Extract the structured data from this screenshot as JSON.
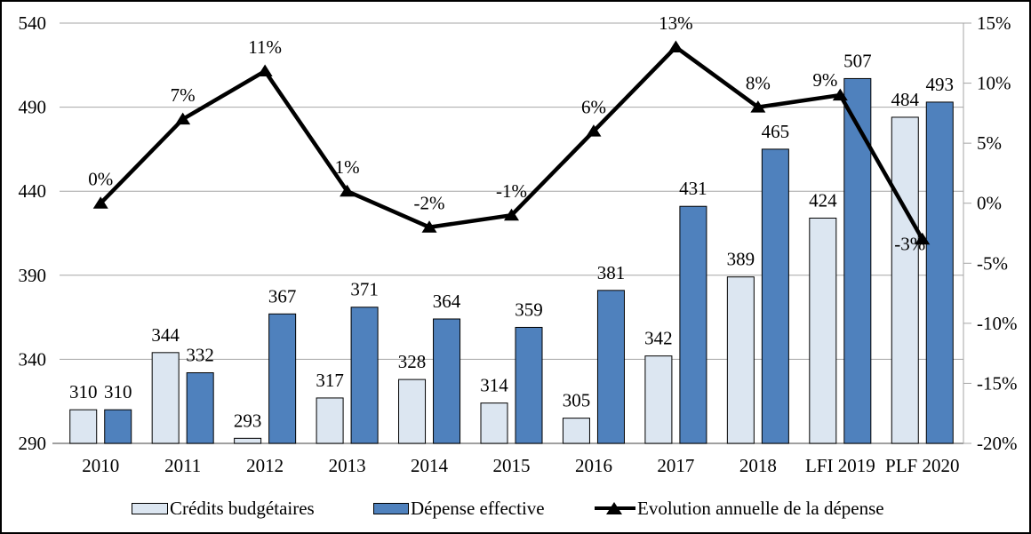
{
  "chart_data": {
    "type": "combo-bar-line",
    "title": "",
    "categories": [
      "2010",
      "2011",
      "2012",
      "2013",
      "2014",
      "2015",
      "2016",
      "2017",
      "2018",
      "LFI 2019",
      "PLF 2020"
    ],
    "series": [
      {
        "name": "Crédits budgétaires",
        "type": "bar",
        "axis": "left",
        "color": "#dce6f1",
        "border_color": "#000000",
        "values": [
          310,
          344,
          293,
          317,
          328,
          314,
          305,
          342,
          389,
          424,
          484
        ],
        "labels": [
          "310",
          "344",
          "293",
          "317",
          "328",
          "314",
          "305",
          "342",
          "389",
          "424",
          "484"
        ]
      },
      {
        "name": "Dépense effective",
        "type": "bar",
        "axis": "left",
        "color": "#4f81bd",
        "border_color": "#000000",
        "values": [
          310,
          332,
          367,
          371,
          364,
          359,
          381,
          431,
          465,
          507,
          493
        ],
        "labels": [
          "310",
          "332",
          "367",
          "371",
          "364",
          "359",
          "381",
          "431",
          "465",
          "507",
          "493"
        ]
      },
      {
        "name": "Evolution annuelle de la dépense",
        "type": "line",
        "axis": "right",
        "color": "#000000",
        "marker": "triangle-up",
        "values": [
          0,
          7,
          11,
          1,
          -2,
          -1,
          6,
          13,
          8,
          9,
          -3
        ],
        "labels": [
          "0%",
          "7%",
          "11%",
          "1%",
          "-2%",
          "-1%",
          "6%",
          "13%",
          "8%",
          "9%",
          "-3%"
        ],
        "label_offsets": [
          [
            0,
            0
          ],
          [
            0,
            0
          ],
          [
            0,
            0
          ],
          [
            0,
            0
          ],
          [
            0,
            0
          ],
          [
            0,
            0
          ],
          [
            0,
            0
          ],
          [
            0,
            0
          ],
          [
            0,
            0
          ],
          [
            -17,
            10
          ],
          [
            -14,
            32
          ]
        ]
      }
    ],
    "left_axis": {
      "min": 290,
      "max": 540,
      "step": 50,
      "ticks": [
        "540",
        "490",
        "440",
        "390",
        "340",
        "290"
      ]
    },
    "right_axis": {
      "min": -20,
      "max": 15,
      "step": 5,
      "ticks": [
        "15%",
        "10%",
        "5%",
        "0%",
        "-5%",
        "-10%",
        "-15%",
        "-20%"
      ]
    },
    "grid": true,
    "gridline_color": "#a6a6a6",
    "axis_line_color": "#808080",
    "legend_position": "bottom"
  }
}
